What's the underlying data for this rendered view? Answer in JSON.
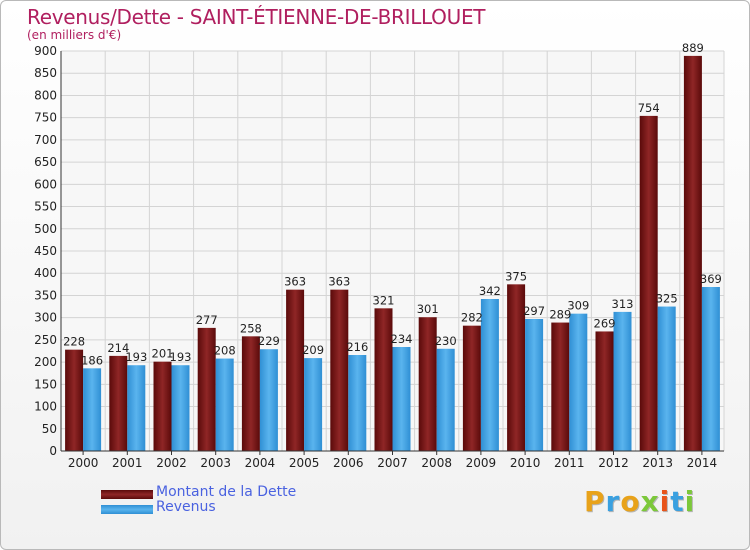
{
  "chart_data": {
    "type": "bar",
    "title": "Revenus/Dette - SAINT-ÉTIENNE-DE-BRILLOUET",
    "subtitle": "(en milliers d'€)",
    "categories": [
      "2000",
      "2001",
      "2002",
      "2003",
      "2004",
      "2005",
      "2006",
      "2007",
      "2008",
      "2009",
      "2010",
      "2011",
      "2012",
      "2013",
      "2014"
    ],
    "series": [
      {
        "name": "Montant de la Dette",
        "color": "#7a1515",
        "values": [
          228,
          214,
          201,
          277,
          258,
          363,
          363,
          321,
          301,
          282,
          375,
          289,
          269,
          754,
          889
        ]
      },
      {
        "name": "Revenus",
        "color": "#3f9fe0",
        "values": [
          186,
          193,
          193,
          208,
          229,
          209,
          216,
          234,
          230,
          342,
          297,
          309,
          313,
          325,
          369
        ]
      }
    ],
    "ylim": [
      0,
      900
    ],
    "yticks": [
      0,
      50,
      100,
      150,
      200,
      250,
      300,
      350,
      400,
      450,
      500,
      550,
      600,
      650,
      700,
      750,
      800,
      850,
      900
    ],
    "grid": true,
    "legend_position": "bottom-left"
  },
  "logo": {
    "letters": [
      "P",
      "r",
      "o",
      "x",
      "i",
      "t",
      "i"
    ],
    "colors": [
      "#e8a21a",
      "#3aa0e0",
      "#e8a21a",
      "#7cc83a",
      "#e8541a",
      "#3aa0e0",
      "#7cc83a"
    ]
  }
}
